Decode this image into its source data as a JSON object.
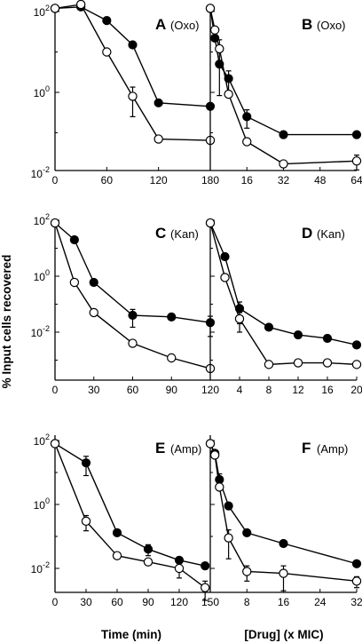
{
  "figure": {
    "ylabel": "% Input cells recovered",
    "xlabel_left": "Time (min)",
    "xlabel_right": "[Drug] (x MIC)",
    "series_styles": {
      "filled": "#000000",
      "open": "#ffffff"
    }
  },
  "chart_data": [
    {
      "type": "line",
      "letter": "A",
      "drug": "(Oxo)",
      "yscale": "log",
      "ylim": [
        0.01,
        100
      ],
      "xlim": [
        0,
        180
      ],
      "xticks": [
        0,
        60,
        120,
        180
      ],
      "ytick_labels": [
        {
          "base": "10",
          "exp": "2",
          "value": 100
        },
        {
          "base": "10",
          "exp": "0",
          "value": 1
        },
        {
          "base": "10",
          "exp": "-2",
          "value": 0.01
        }
      ],
      "series": [
        {
          "style": "filled",
          "x": [
            0,
            30,
            60,
            90,
            120,
            180
          ],
          "y": [
            120,
            130,
            60,
            15,
            0.55,
            0.45
          ],
          "err": [
            0,
            0,
            0,
            0,
            0,
            0
          ]
        },
        {
          "style": "open",
          "x": [
            0,
            30,
            60,
            90,
            120,
            180
          ],
          "y": [
            120,
            150,
            10,
            0.8,
            0.07,
            0.065
          ],
          "err": [
            0,
            0,
            0,
            0.55,
            0,
            0
          ]
        }
      ]
    },
    {
      "type": "line",
      "letter": "B",
      "drug": "(Oxo)",
      "yscale": "log",
      "ylim": [
        0.01,
        100
      ],
      "xlim": [
        0,
        64
      ],
      "xticks": [
        16,
        32,
        48,
        64
      ],
      "ytick_labels": [],
      "series": [
        {
          "style": "filled",
          "x": [
            0,
            2,
            4,
            8,
            16,
            32,
            64
          ],
          "y": [
            120,
            22,
            5,
            2.2,
            0.25,
            0.09,
            0.09
          ],
          "err": [
            0,
            0,
            15,
            1.2,
            0.12,
            0,
            0
          ]
        },
        {
          "style": "open",
          "x": [
            0,
            2,
            4,
            8,
            16,
            32,
            64
          ],
          "y": [
            120,
            35,
            12,
            0.9,
            0.06,
            0.017,
            0.02
          ],
          "err": [
            0,
            0,
            0,
            0,
            0,
            0,
            0.008
          ]
        }
      ]
    },
    {
      "type": "line",
      "letter": "C",
      "drug": "(Kan)",
      "yscale": "log",
      "ylim": [
        0.0003,
        100
      ],
      "xlim": [
        0,
        120
      ],
      "xticks": [
        0,
        30,
        60,
        90,
        120
      ],
      "ytick_labels": [
        {
          "base": "10",
          "exp": "2",
          "value": 100
        },
        {
          "base": "10",
          "exp": "0",
          "value": 1
        },
        {
          "base": "10",
          "exp": "-2",
          "value": 0.01
        }
      ],
      "series": [
        {
          "style": "filled",
          "x": [
            0,
            15,
            30,
            60,
            90,
            120
          ],
          "y": [
            80,
            20,
            0.6,
            0.04,
            0.035,
            0.022
          ],
          "err": [
            0,
            0,
            0,
            0.025,
            0,
            0.015
          ]
        },
        {
          "style": "open",
          "x": [
            0,
            15,
            30,
            60,
            90,
            120
          ],
          "y": [
            80,
            0.6,
            0.05,
            0.004,
            0.0012,
            0.0005
          ],
          "err": [
            0,
            0,
            0,
            0,
            0,
            0
          ]
        }
      ]
    },
    {
      "type": "line",
      "letter": "D",
      "drug": "(Kan)",
      "yscale": "log",
      "ylim": [
        0.0003,
        100
      ],
      "xlim": [
        0,
        20
      ],
      "xticks": [
        4,
        8,
        12,
        16,
        20
      ],
      "ytick_labels": [],
      "series": [
        {
          "style": "filled",
          "x": [
            0,
            2,
            4,
            8,
            12,
            16,
            20
          ],
          "y": [
            80,
            5,
            0.07,
            0.015,
            0.008,
            0.006,
            0.0035
          ],
          "err": [
            0,
            0,
            0.05,
            0,
            0,
            0,
            0
          ]
        },
        {
          "style": "open",
          "x": [
            0,
            2,
            4,
            8,
            12,
            16,
            20
          ],
          "y": [
            80,
            0.9,
            0.03,
            0.0007,
            0.0008,
            0.0008,
            0.0007
          ],
          "err": [
            0,
            0,
            0.02,
            0,
            0,
            0,
            0
          ]
        }
      ]
    },
    {
      "type": "line",
      "letter": "E",
      "drug": "(Amp)",
      "yscale": "log",
      "ylim": [
        0.001,
        100
      ],
      "xlim": [
        0,
        150
      ],
      "xticks": [
        0,
        30,
        60,
        90,
        120,
        150
      ],
      "ytick_labels": [
        {
          "base": "10",
          "exp": "2",
          "value": 100
        },
        {
          "base": "10",
          "exp": "0",
          "value": 1
        },
        {
          "base": "10",
          "exp": "-2",
          "value": 0.01
        }
      ],
      "series": [
        {
          "style": "filled",
          "x": [
            0,
            30,
            60,
            90,
            120,
            145
          ],
          "y": [
            80,
            20,
            0.13,
            0.04,
            0.018,
            0.012
          ],
          "err": [
            0,
            12,
            0,
            0.015,
            0,
            0
          ]
        },
        {
          "style": "open",
          "x": [
            0,
            30,
            60,
            90,
            120,
            145
          ],
          "y": [
            80,
            0.3,
            0.025,
            0.016,
            0.01,
            0.0025
          ],
          "err": [
            0,
            0.15,
            0,
            0,
            0.005,
            0.0015
          ]
        }
      ]
    },
    {
      "type": "line",
      "letter": "F",
      "drug": "(Amp)",
      "yscale": "log",
      "ylim": [
        0.001,
        100
      ],
      "xlim": [
        0,
        32
      ],
      "xticks": [
        8,
        16,
        24,
        32
      ],
      "ytick_labels": [],
      "series": [
        {
          "style": "filled",
          "x": [
            0,
            1,
            2,
            4,
            8,
            16,
            32
          ],
          "y": [
            80,
            40,
            6,
            0.9,
            0.13,
            0.06,
            0.014
          ],
          "err": [
            0,
            0,
            3,
            0,
            0,
            0,
            0
          ]
        },
        {
          "style": "open",
          "x": [
            0,
            1,
            2,
            4,
            8,
            16,
            32
          ],
          "y": [
            80,
            35,
            3.5,
            0.09,
            0.008,
            0.007,
            0.004
          ],
          "err": [
            0,
            0,
            0,
            0.07,
            0.004,
            0.005,
            0.0015
          ]
        }
      ]
    }
  ]
}
